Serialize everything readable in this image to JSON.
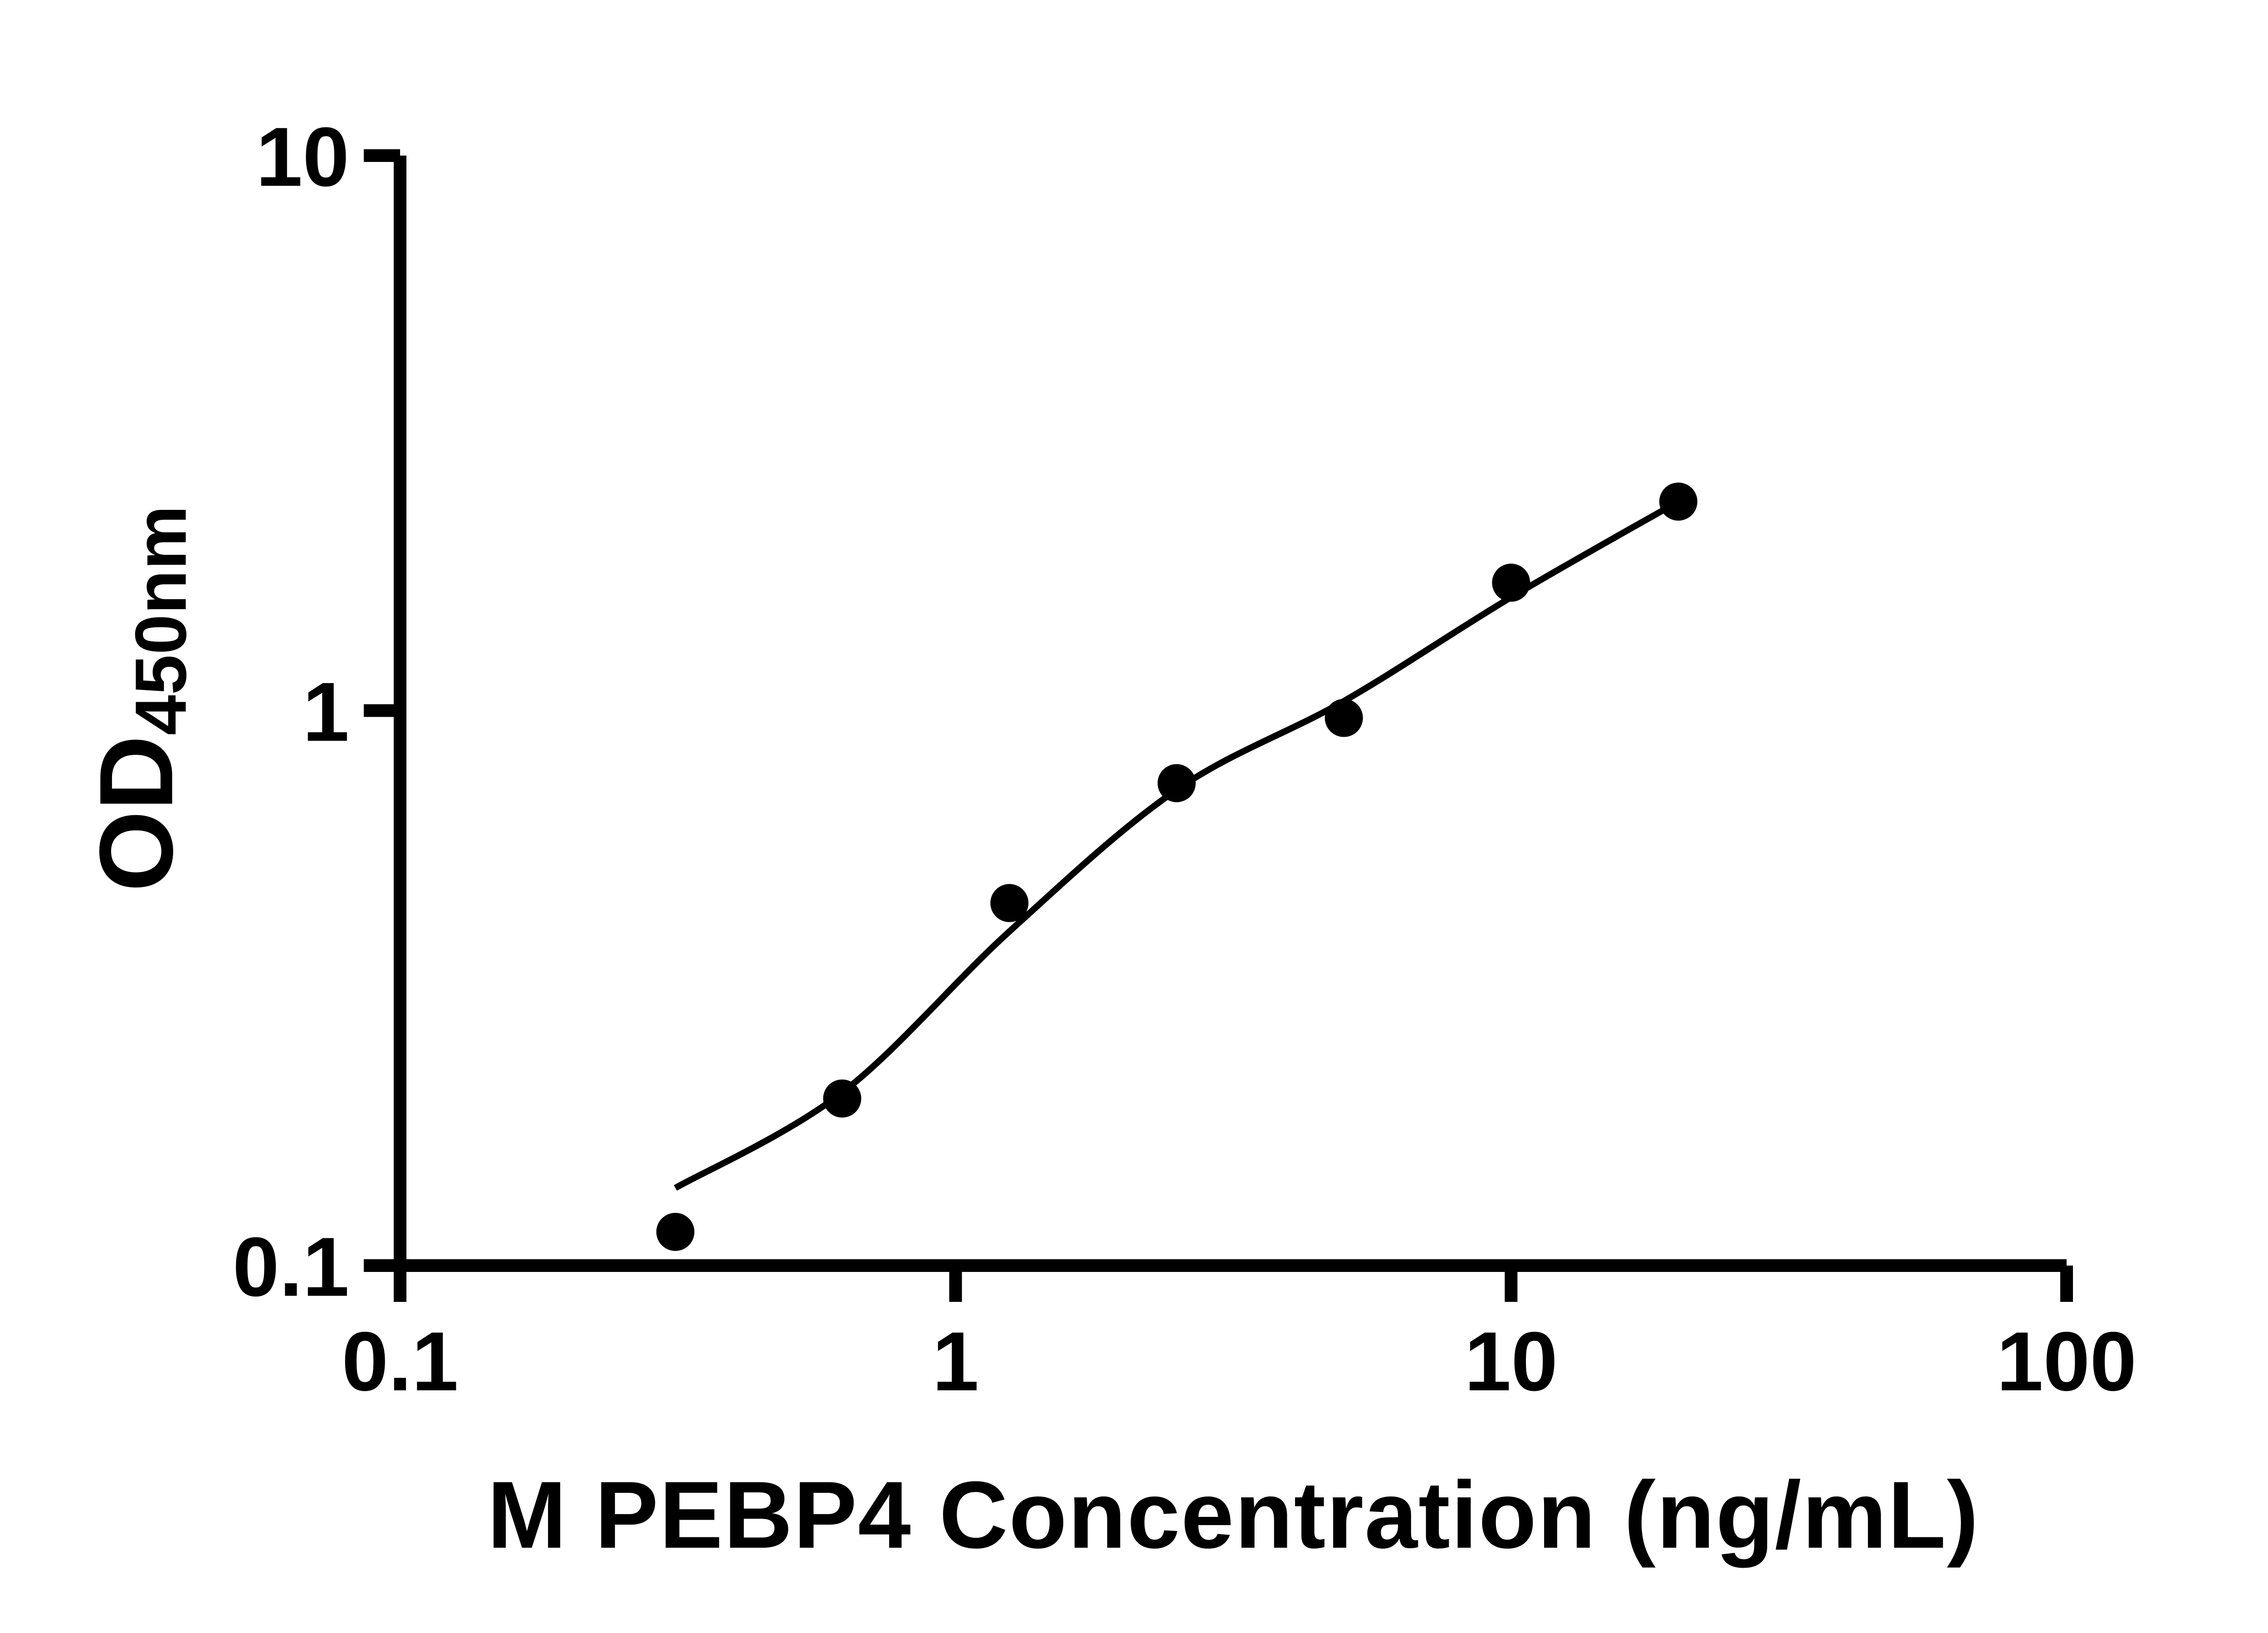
{
  "figure": {
    "background": "#ffffff"
  },
  "chart_data": {
    "type": "scatter",
    "title": "",
    "xlabel": "M PEBP4 Concentration (ng/mL)",
    "ylabel_main": "OD",
    "ylabel_sub": "450nm",
    "xscale": "log",
    "yscale": "log",
    "xlim": [
      0.1,
      100
    ],
    "ylim": [
      0.1,
      10
    ],
    "grid": false,
    "legend": false,
    "colors": {
      "axis": "#000000",
      "marker": "#000000",
      "curve": "#000000"
    },
    "x_ticks": [
      {
        "value": 0.1,
        "label": "0.1"
      },
      {
        "value": 1,
        "label": "1"
      },
      {
        "value": 10,
        "label": "10"
      },
      {
        "value": 100,
        "label": "100"
      }
    ],
    "y_ticks": [
      {
        "value": 0.1,
        "label": "0.1"
      },
      {
        "value": 1,
        "label": "1"
      },
      {
        "value": 10,
        "label": "10"
      }
    ],
    "points": {
      "x": [
        0.313,
        0.625,
        1.25,
        2.5,
        5,
        10,
        20
      ],
      "y": [
        0.115,
        0.2,
        0.45,
        0.74,
        0.97,
        1.7,
        2.38
      ]
    },
    "fit_curve": {
      "x": [
        0.313,
        0.625,
        1.25,
        2.5,
        5,
        10,
        20
      ],
      "y": [
        0.138,
        0.205,
        0.4,
        0.72,
        1.04,
        1.6,
        2.38
      ]
    }
  }
}
